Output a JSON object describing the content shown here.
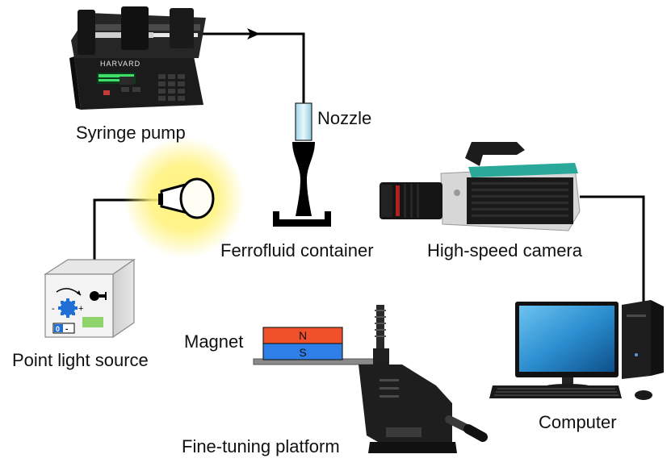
{
  "labels": {
    "syringe_pump": "Syringe pump",
    "nozzle": "Nozzle",
    "ferrofluid_container": "Ferrofluid container",
    "high_speed_camera": "High-speed camera",
    "point_light_source": "Point light source",
    "magnet": "Magnet",
    "computer": "Computer",
    "fine_tuning_platform": "Fine-tuning platform"
  },
  "magnet_poles": {
    "north": "N",
    "south": "S"
  },
  "pump_brand": "HARVARD",
  "light_box": {
    "minus": "-",
    "plus": "+",
    "switch_zero": "0",
    "switch_dash": "-"
  },
  "icons": [
    "syringe-pump-icon",
    "nozzle-icon",
    "container-icon",
    "lamp-icon",
    "light-box-icon",
    "camera-icon",
    "computer-icon",
    "magnet-icon",
    "platform-icon"
  ],
  "colors": {
    "magnet_north": "#f0502a",
    "magnet_south": "#2f7fe8",
    "light_glow": "#fff27a",
    "monitor_screen": "#2c8fd0",
    "light_box_display": "#8fd46a",
    "knob": "#1f6fd6",
    "camera_accent": "#2aa89a",
    "lines": "#000000"
  }
}
